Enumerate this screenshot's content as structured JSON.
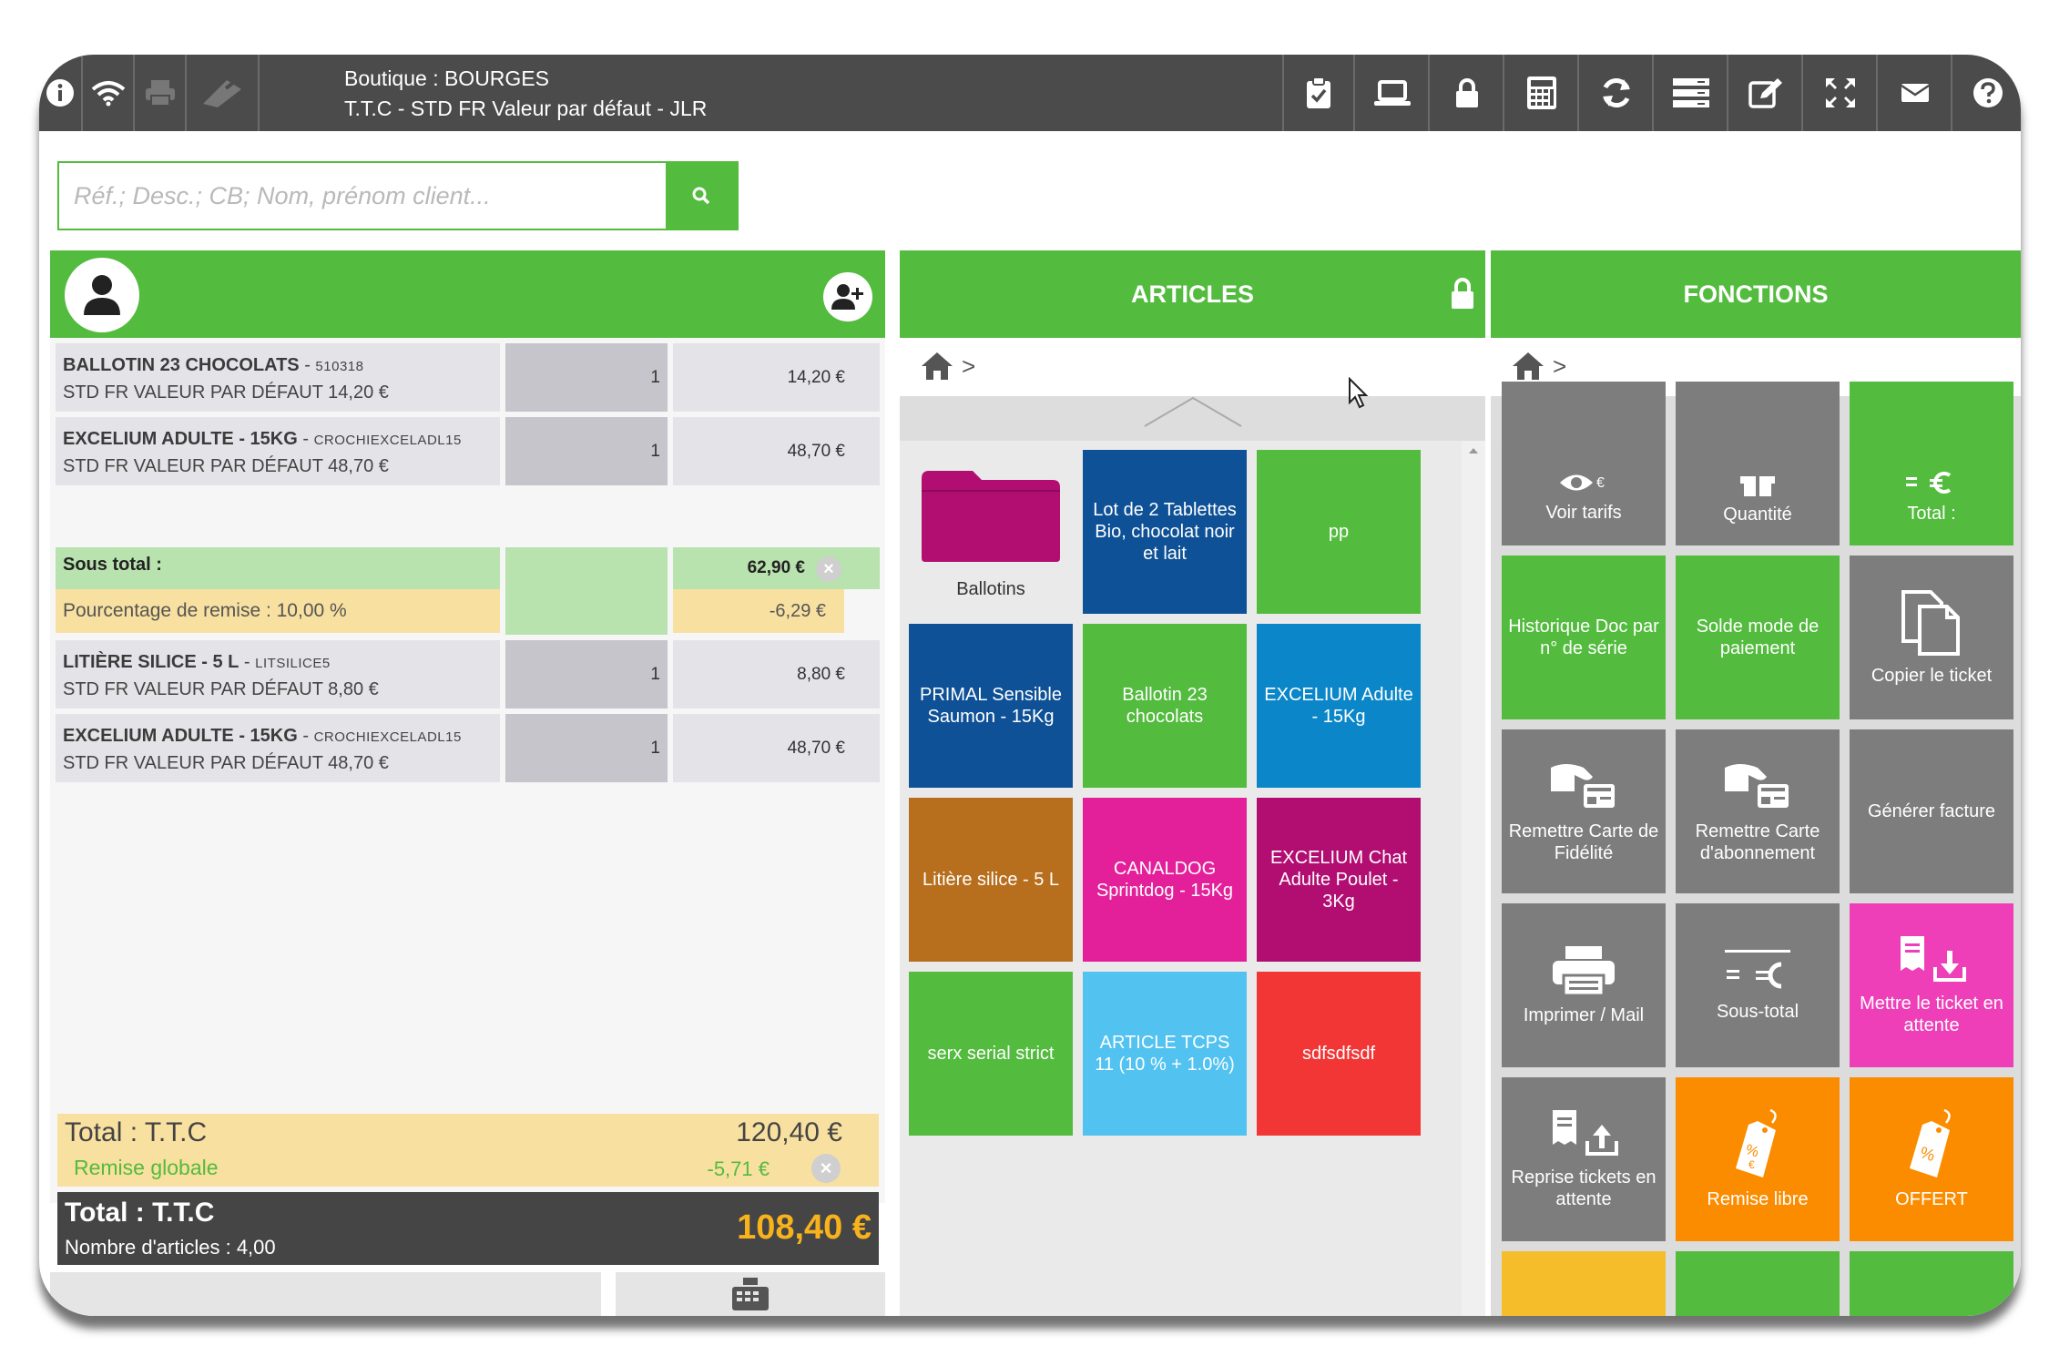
{
  "topbar": {
    "shop_line": "Boutique : BOURGES",
    "tariff_line": "T.T.C - STD FR Valeur par défaut - JLR"
  },
  "search": {
    "placeholder": "Réf.; Desc.; CB; Nom, prénom client..."
  },
  "ticket": {
    "lines": [
      {
        "name": "BALLOTIN 23 CHOCOLATS",
        "ref": "510318",
        "tariff": "STD FR VALEUR PAR DÉFAUT 14,20 €",
        "qty": "1",
        "price": "14,20 €"
      },
      {
        "name": "EXCELIUM ADULTE - 15KG",
        "ref": "CROCHIEXCELADL15",
        "tariff": "STD FR VALEUR PAR DÉFAUT 48,70 €",
        "qty": "1",
        "price": "48,70 €"
      },
      {
        "name": "LITIÈRE SILICE - 5 L",
        "ref": "LITSILICE5",
        "tariff": "STD FR VALEUR PAR DÉFAUT 8,80 €",
        "qty": "1",
        "price": "8,80 €"
      },
      {
        "name": "EXCELIUM ADULTE - 15KG",
        "ref": "CROCHIEXCELADL15",
        "tariff": "STD FR VALEUR PAR DÉFAUT 48,70 €",
        "qty": "1",
        "price": "48,70 €"
      }
    ],
    "subtotal": {
      "label": "Sous total :",
      "value": "62,90 €",
      "discount_label": "Pourcentage de remise : 10,00 %",
      "discount_value": "-6,29 €"
    },
    "total": {
      "label": "Total : T.T.C",
      "value": "120,40 €",
      "remise_label": "Remise globale",
      "remise_value": "-5,71 €"
    },
    "grand": {
      "label": "Total : T.T.C",
      "count": "Nombre d'articles : 4,00",
      "value": "108,40 €"
    }
  },
  "articles": {
    "header": "ARTICLES",
    "folder_label": "Ballotins",
    "tiles": [
      {
        "label": "Lot de 2 Tablettes Bio, chocolat noir et lait",
        "color": "#0f5196"
      },
      {
        "label": "pp",
        "color": "#53bb3e"
      },
      {
        "label": "PRIMAL Sensible Saumon - 15Kg",
        "color": "#0f5196"
      },
      {
        "label": "Ballotin 23 chocolats",
        "color": "#53bb3e"
      },
      {
        "label": "EXCELIUM Adulte - 15Kg",
        "color": "#0b86c8"
      },
      {
        "label": "Litière silice - 5 L",
        "color": "#b76e1d"
      },
      {
        "label": "CANALDOG Sprintdog - 15Kg",
        "color": "#e3209a"
      },
      {
        "label": "EXCELIUM Chat Adulte Poulet - 3Kg",
        "color": "#b20e72"
      },
      {
        "label": "serx serial strict",
        "color": "#53bb3e"
      },
      {
        "label": "ARTICLE TCPS 11 (10 % + 1.0%)",
        "color": "#52c2f0"
      },
      {
        "label": "sdfsdfsdf",
        "color": "#f23535"
      }
    ]
  },
  "fonctions": {
    "header": "FONCTIONS",
    "tiles": [
      {
        "label": "Voir tarifs",
        "color": "#7d7d7d",
        "icon": "eye-icon"
      },
      {
        "label": "Quantité",
        "color": "#7d7d7d",
        "icon": "gift-icon"
      },
      {
        "label": "Total :",
        "color": "#53bb3e",
        "icon": "euro-icon"
      },
      {
        "label": "Historique Doc par n° de série",
        "color": "#53bb3e",
        "icon": ""
      },
      {
        "label": "Solde mode de paiement",
        "color": "#53bb3e",
        "icon": ""
      },
      {
        "label": "Copier le ticket",
        "color": "#7d7d7d",
        "icon": "copy-icon"
      },
      {
        "label": "Remettre Carte de Fidélité",
        "color": "#7d7d7d",
        "icon": "card-hand-icon"
      },
      {
        "label": "Remettre Carte d'abonnement",
        "color": "#7d7d7d",
        "icon": "card-hand-icon"
      },
      {
        "label": "Générer facture",
        "color": "#7d7d7d",
        "icon": ""
      },
      {
        "label": "Imprimer / Mail",
        "color": "#7d7d7d",
        "icon": "printer-icon"
      },
      {
        "label": "Sous-total",
        "color": "#7d7d7d",
        "icon": "subtotal-euro-icon"
      },
      {
        "label": "Mettre le ticket en attente",
        "color": "#ee3fb8",
        "icon": "ticket-download-icon"
      },
      {
        "label": "Reprise tickets en attente",
        "color": "#7d7d7d",
        "icon": "ticket-upload-icon"
      },
      {
        "label": "Remise libre",
        "color": "#fb8c00",
        "icon": "price-tag-icon"
      },
      {
        "label": "OFFERT",
        "color": "#fb8c00",
        "icon": "price-tag-icon"
      }
    ]
  }
}
